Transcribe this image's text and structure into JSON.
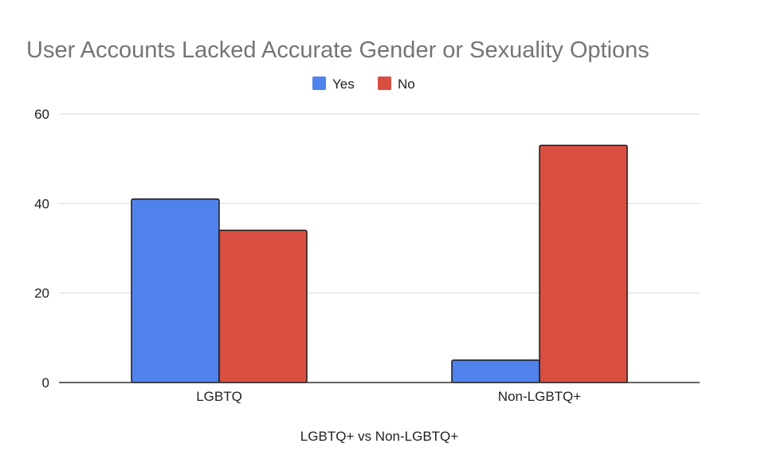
{
  "chart_data": {
    "type": "bar",
    "title": "User Accounts Lacked Accurate Gender or Sexuality Options",
    "xlabel": "LGBTQ+ vs Non-LGBTQ+",
    "ylabel": "",
    "categories": [
      "LGBTQ",
      "Non-LGBTQ+"
    ],
    "series": [
      {
        "name": "Yes",
        "values": [
          41,
          5
        ],
        "color": "#5082ec"
      },
      {
        "name": "No",
        "values": [
          34,
          53
        ],
        "color": "#d84f41"
      }
    ],
    "ylim": [
      0,
      60
    ],
    "yticks": [
      "0",
      "20",
      "40",
      "60"
    ],
    "grid": true,
    "legend_position": "top"
  }
}
